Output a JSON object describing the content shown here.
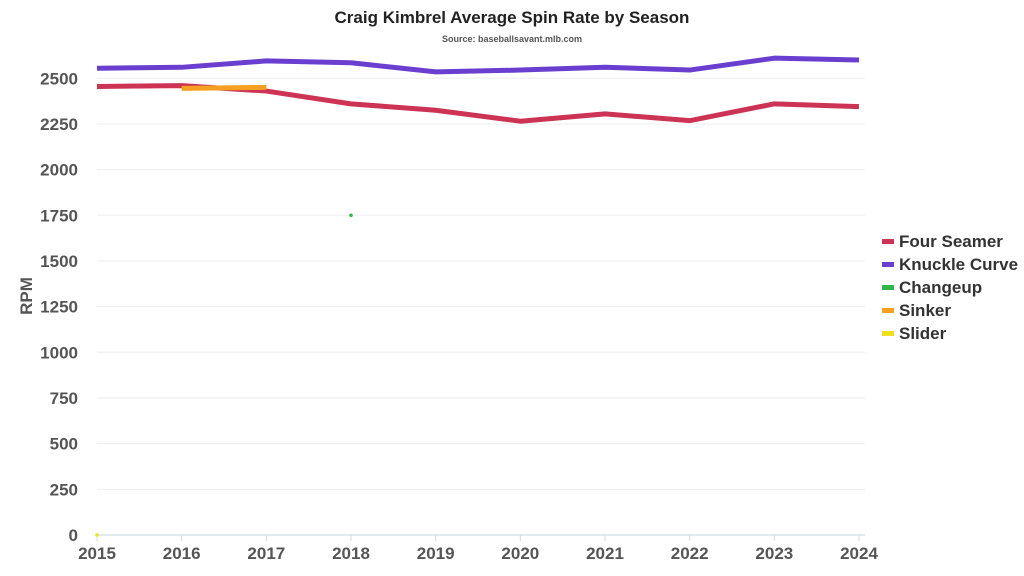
{
  "chart_data": {
    "type": "line",
    "title": "Craig Kimbrel Average Spin Rate by Season",
    "subtitle": "Source: baseballsavant.mlb.com",
    "xlabel": "",
    "ylabel": "RPM",
    "x": [
      2015,
      2016,
      2017,
      2018,
      2019,
      2020,
      2021,
      2022,
      2023,
      2024
    ],
    "xticks": [
      "2015",
      "2016",
      "2017",
      "2018",
      "2019",
      "2020",
      "2021",
      "2022",
      "2023",
      "2024"
    ],
    "yticks": [
      "0",
      "250",
      "500",
      "750",
      "1000",
      "1250",
      "1500",
      "1750",
      "2000",
      "2250",
      "2500"
    ],
    "ylim": [
      0,
      2600
    ],
    "legend_position": "right",
    "series": [
      {
        "name": "Four Seamer",
        "color": "#cc3355",
        "values": [
          2455,
          2460,
          2430,
          2360,
          2325,
          2265,
          2305,
          2268,
          2360,
          2345
        ]
      },
      {
        "name": "Knuckle Curve",
        "color": "#6a3fd0",
        "values": [
          2555,
          2560,
          2595,
          2585,
          2535,
          2545,
          2560,
          2545,
          2610,
          2600
        ]
      },
      {
        "name": "Changeup",
        "color": "#2fb84a",
        "values": [
          null,
          null,
          null,
          1750,
          null,
          null,
          null,
          null,
          null,
          null
        ]
      },
      {
        "name": "Sinker",
        "color": "#f5a020",
        "values": [
          null,
          2445,
          2450,
          null,
          null,
          null,
          null,
          null,
          null,
          null
        ]
      },
      {
        "name": "Slider",
        "color": "#f0e020",
        "values": [
          0,
          null,
          null,
          null,
          null,
          null,
          null,
          null,
          null,
          null
        ]
      }
    ]
  }
}
